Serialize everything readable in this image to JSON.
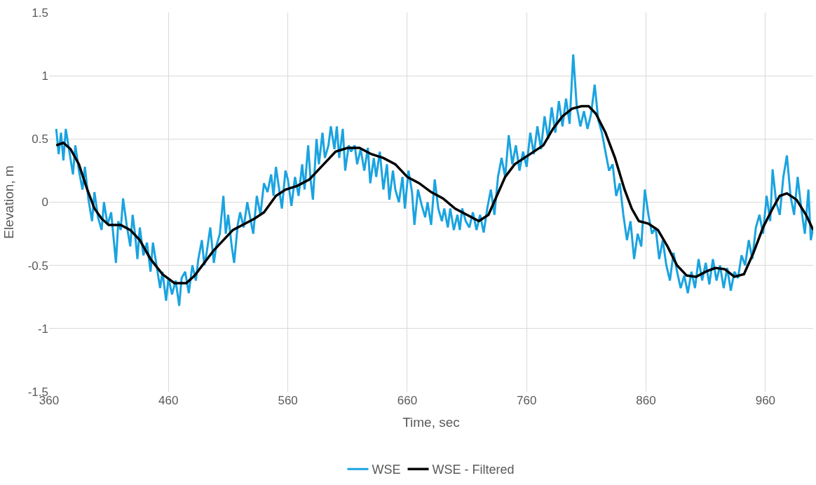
{
  "chart_data": {
    "type": "line",
    "xlabel": "Time, sec",
    "ylabel": "Elevation, m",
    "xlim": [
      360,
      1000
    ],
    "xticks": [
      360,
      460,
      560,
      660,
      760,
      860,
      960
    ],
    "ylim": [
      -1.5,
      1.5
    ],
    "yticks": [
      -1.5,
      -1,
      -0.5,
      0,
      0.5,
      1,
      1.5
    ],
    "grid": true,
    "legend": "bottom",
    "marker": "none",
    "line_style": "solid",
    "series": [
      {
        "name": "WSE",
        "color": "#1aa3e0",
        "x": [
          366,
          368,
          370,
          372,
          374,
          377,
          380,
          382,
          385,
          388,
          390,
          393,
          396,
          398,
          401,
          404,
          406,
          409,
          412,
          414,
          416,
          418,
          420,
          422,
          425,
          428,
          430,
          432,
          434,
          436,
          439,
          442,
          445,
          447,
          450,
          453,
          455,
          458,
          460,
          463,
          466,
          469,
          471,
          474,
          477,
          480,
          483,
          485,
          488,
          490,
          492,
          495,
          498,
          500,
          503,
          506,
          508,
          510,
          513,
          515,
          518,
          520,
          523,
          526,
          528,
          531,
          534,
          537,
          540,
          543,
          546,
          548,
          550,
          552,
          555,
          558,
          560,
          563,
          566,
          569,
          572,
          574,
          577,
          579,
          581,
          584,
          586,
          589,
          591,
          594,
          596,
          599,
          601,
          603,
          606,
          608,
          611,
          613,
          616,
          618,
          621,
          624,
          627,
          629,
          632,
          634,
          637,
          640,
          643,
          645,
          648,
          650,
          653,
          656,
          658,
          661,
          664,
          666,
          669,
          672,
          675,
          677,
          680,
          683,
          686,
          689,
          691,
          694,
          696,
          699,
          702,
          704,
          706,
          709,
          712,
          715,
          718,
          721,
          724,
          727,
          730,
          733,
          736,
          739,
          742,
          745,
          748,
          751,
          754,
          757,
          760,
          763,
          766,
          769,
          772,
          775,
          778,
          781,
          784,
          787,
          790,
          793,
          796,
          799,
          802,
          805,
          808,
          811,
          814,
          817,
          820,
          823,
          826,
          829,
          832,
          835,
          838,
          841,
          844,
          847,
          850,
          853,
          856,
          859,
          862,
          865,
          868,
          871,
          874,
          877,
          880,
          883,
          886,
          889,
          892,
          895,
          898,
          901,
          904,
          907,
          910,
          913,
          916,
          919,
          922,
          925,
          928,
          931,
          934,
          937,
          940,
          943,
          946,
          949,
          952,
          955,
          958,
          961,
          964,
          966,
          969,
          972,
          975,
          978,
          981,
          984,
          987,
          990,
          993,
          996,
          998,
          1000
        ],
        "values": [
          0.58,
          0.38,
          0.55,
          0.33,
          0.58,
          0.4,
          0.22,
          0.45,
          0.25,
          0.1,
          0.28,
          0.02,
          -0.15,
          0.08,
          -0.12,
          -0.22,
          0.0,
          -0.18,
          -0.08,
          -0.28,
          -0.48,
          -0.15,
          -0.22,
          0.03,
          -0.18,
          -0.35,
          -0.1,
          -0.25,
          -0.45,
          -0.2,
          -0.42,
          -0.32,
          -0.55,
          -0.32,
          -0.5,
          -0.68,
          -0.55,
          -0.78,
          -0.6,
          -0.73,
          -0.62,
          -0.82,
          -0.6,
          -0.55,
          -0.72,
          -0.5,
          -0.62,
          -0.45,
          -0.3,
          -0.5,
          -0.4,
          -0.2,
          -0.48,
          -0.35,
          -0.25,
          0.05,
          -0.25,
          -0.1,
          -0.35,
          -0.48,
          -0.18,
          -0.08,
          -0.2,
          0.0,
          -0.1,
          -0.25,
          0.05,
          -0.1,
          0.15,
          0.08,
          0.22,
          0.05,
          0.28,
          0.15,
          -0.05,
          0.25,
          0.18,
          -0.03,
          0.2,
          0.05,
          0.3,
          0.1,
          0.45,
          0.18,
          0.02,
          0.5,
          0.3,
          0.55,
          0.35,
          0.45,
          0.6,
          0.42,
          0.6,
          0.35,
          0.58,
          0.25,
          0.45,
          0.4,
          0.45,
          0.3,
          0.42,
          0.25,
          0.43,
          0.15,
          0.35,
          0.2,
          0.4,
          0.1,
          0.3,
          0.02,
          0.25,
          0.1,
          0.0,
          0.2,
          -0.05,
          0.25,
          0.08,
          -0.18,
          0.1,
          -0.02,
          -0.12,
          0.0,
          -0.18,
          0.18,
          -0.05,
          -0.15,
          -0.05,
          -0.2,
          -0.05,
          -0.22,
          -0.1,
          -0.22,
          -0.05,
          -0.15,
          -0.2,
          -0.08,
          -0.22,
          -0.1,
          -0.24,
          -0.05,
          0.1,
          -0.1,
          0.2,
          0.35,
          0.2,
          0.53,
          0.3,
          0.45,
          0.25,
          0.4,
          0.28,
          0.55,
          0.38,
          0.6,
          0.42,
          0.68,
          0.5,
          0.75,
          0.55,
          0.8,
          0.6,
          0.82,
          0.62,
          1.17,
          0.75,
          0.6,
          0.72,
          0.58,
          0.7,
          0.93,
          0.65,
          0.55,
          0.4,
          0.25,
          0.3,
          0.05,
          0.15,
          -0.1,
          -0.3,
          -0.15,
          -0.45,
          -0.25,
          -0.35,
          0.1,
          -0.1,
          -0.25,
          -0.2,
          -0.45,
          -0.3,
          -0.5,
          -0.62,
          -0.4,
          -0.55,
          -0.68,
          -0.58,
          -0.72,
          -0.55,
          -0.68,
          -0.45,
          -0.62,
          -0.48,
          -0.65,
          -0.45,
          -0.62,
          -0.5,
          -0.68,
          -0.52,
          -0.7,
          -0.55,
          -0.6,
          -0.42,
          -0.5,
          -0.3,
          -0.45,
          -0.2,
          -0.1,
          -0.25,
          0.05,
          -0.15,
          0.26,
          0.0,
          -0.1,
          0.2,
          0.37,
          0.05,
          -0.1,
          0.2,
          -0.05,
          -0.25,
          0.1,
          -0.3,
          -0.2
        ]
      },
      {
        "name": "WSE - Filtered",
        "color": "#000000",
        "x": [
          366,
          372,
          378,
          385,
          392,
          398,
          404,
          410,
          420,
          428,
          436,
          445,
          455,
          465,
          475,
          482,
          490,
          498,
          506,
          514,
          522,
          532,
          540,
          550,
          558,
          568,
          578,
          590,
          600,
          610,
          620,
          630,
          640,
          650,
          660,
          670,
          680,
          690,
          700,
          710,
          720,
          728,
          735,
          742,
          750,
          758,
          766,
          774,
          782,
          790,
          798,
          806,
          812,
          818,
          826,
          834,
          842,
          848,
          854,
          862,
          870,
          878,
          886,
          894,
          902,
          910,
          918,
          926,
          934,
          942,
          950,
          958,
          966,
          972,
          978,
          986,
          994,
          1000
        ],
        "values": [
          0.45,
          0.47,
          0.42,
          0.3,
          0.1,
          -0.05,
          -0.13,
          -0.18,
          -0.18,
          -0.22,
          -0.3,
          -0.45,
          -0.57,
          -0.64,
          -0.64,
          -0.58,
          -0.48,
          -0.38,
          -0.3,
          -0.22,
          -0.18,
          -0.13,
          -0.08,
          0.05,
          0.1,
          0.13,
          0.18,
          0.3,
          0.4,
          0.43,
          0.43,
          0.38,
          0.35,
          0.3,
          0.2,
          0.15,
          0.08,
          0.03,
          -0.05,
          -0.1,
          -0.15,
          -0.1,
          0.05,
          0.2,
          0.3,
          0.35,
          0.4,
          0.45,
          0.58,
          0.68,
          0.74,
          0.76,
          0.76,
          0.7,
          0.55,
          0.35,
          0.1,
          -0.05,
          -0.15,
          -0.17,
          -0.22,
          -0.35,
          -0.5,
          -0.58,
          -0.59,
          -0.55,
          -0.52,
          -0.53,
          -0.59,
          -0.57,
          -0.4,
          -0.2,
          -0.05,
          0.05,
          0.07,
          0.02,
          -0.1,
          -0.22
        ]
      }
    ]
  }
}
